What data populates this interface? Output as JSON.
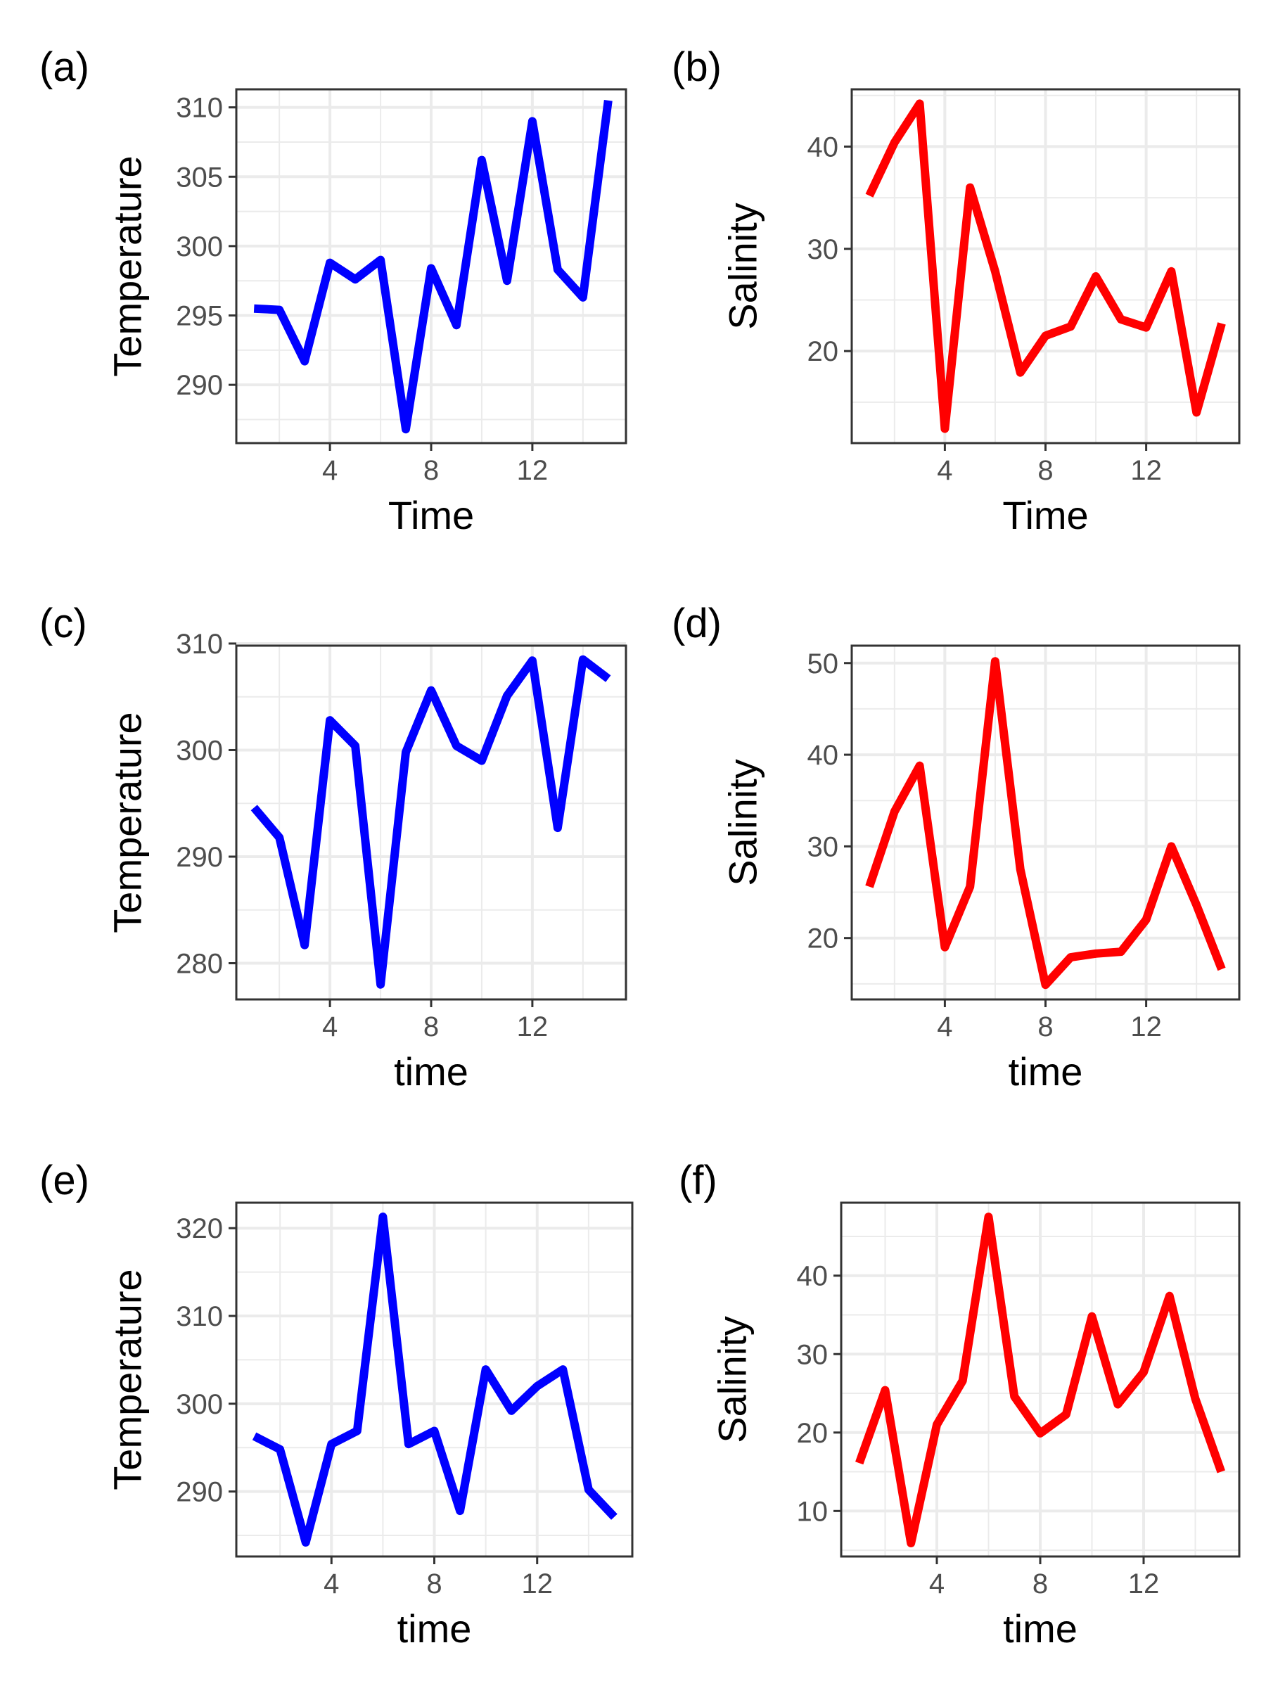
{
  "chart_data": [
    {
      "type": "line",
      "panel_tag": "(a)",
      "xlabel": "Time",
      "ylabel": "Temperature",
      "color": "#0000ff",
      "x": [
        1,
        2,
        3,
        4,
        5,
        6,
        7,
        8,
        9,
        10,
        11,
        12,
        13,
        14,
        15
      ],
      "values": [
        295.5,
        295.4,
        291.7,
        298.8,
        297.6,
        299,
        286.8,
        298.4,
        294.3,
        306.2,
        297.5,
        309,
        298.3,
        296.3,
        310.5
      ],
      "xlim": [
        0.3,
        15.7
      ],
      "ylim": [
        285.8,
        311.3
      ],
      "xticks": [
        4,
        8,
        12
      ],
      "yticks": [
        290,
        295,
        300,
        305,
        310
      ],
      "grid": true
    },
    {
      "type": "line",
      "panel_tag": "(b)",
      "xlabel": "Time",
      "ylabel": "Salinity",
      "color": "#ff0000",
      "x": [
        1,
        2,
        3,
        4,
        5,
        6,
        7,
        8,
        9,
        10,
        11,
        12,
        13,
        14,
        15
      ],
      "values": [
        35.2,
        40.4,
        44.2,
        12.4,
        36,
        27.8,
        17.9,
        21.5,
        22.4,
        27.3,
        23.1,
        22.3,
        27.8,
        14,
        22.7
      ],
      "xlim": [
        0.3,
        15.7
      ],
      "ylim": [
        11,
        45.6
      ],
      "xticks": [
        4,
        8,
        12
      ],
      "yticks": [
        20,
        30,
        40
      ],
      "grid": true
    },
    {
      "type": "line",
      "panel_tag": "(c)",
      "xlabel": "time",
      "ylabel": "Temperature",
      "color": "#0000ff",
      "x": [
        1,
        2,
        3,
        4,
        5,
        6,
        7,
        8,
        9,
        10,
        11,
        12,
        13,
        14,
        15
      ],
      "values": [
        294.6,
        291.8,
        281.7,
        302.8,
        300.4,
        278,
        299.8,
        305.6,
        300.4,
        299,
        305.1,
        308.4,
        292.7,
        308.5,
        306.7
      ],
      "xlim": [
        0.3,
        15.7
      ],
      "ylim": [
        276.6,
        309.8
      ],
      "xticks": [
        4,
        8,
        12
      ],
      "yticks": [
        280,
        290,
        300,
        310
      ],
      "grid": true
    },
    {
      "type": "line",
      "panel_tag": "(d)",
      "xlabel": "time",
      "ylabel": "Salinity",
      "color": "#ff0000",
      "x": [
        1,
        2,
        3,
        4,
        5,
        6,
        7,
        8,
        9,
        10,
        11,
        12,
        13,
        14,
        15
      ],
      "values": [
        25.6,
        33.8,
        38.8,
        19,
        25.6,
        50.2,
        27.5,
        14.9,
        17.9,
        18.3,
        18.5,
        22,
        30,
        23.6,
        16.6
      ],
      "xlim": [
        0.3,
        15.7
      ],
      "ylim": [
        13.3,
        51.9
      ],
      "xticks": [
        4,
        8,
        12
      ],
      "yticks": [
        20,
        30,
        40,
        50
      ],
      "grid": true
    },
    {
      "type": "line",
      "panel_tag": "(e)",
      "xlabel": "time",
      "ylabel": "Temperature",
      "color": "#0000ff",
      "x": [
        1,
        2,
        3,
        4,
        5,
        6,
        7,
        8,
        9,
        10,
        11,
        12,
        13,
        14,
        15
      ],
      "values": [
        296.3,
        294.8,
        284.2,
        295.4,
        296.9,
        321.3,
        295.4,
        296.9,
        287.8,
        303.9,
        299.2,
        302,
        303.9,
        290.2,
        287.1
      ],
      "xlim": [
        0.3,
        15.7
      ],
      "ylim": [
        282.6,
        322.9
      ],
      "xticks": [
        4,
        8,
        12
      ],
      "yticks": [
        290,
        300,
        310,
        320
      ],
      "grid": true
    },
    {
      "type": "line",
      "panel_tag": "(f)",
      "xlabel": "time",
      "ylabel": "Salinity",
      "color": "#ff0000",
      "x": [
        1,
        2,
        3,
        4,
        5,
        6,
        7,
        8,
        9,
        10,
        11,
        12,
        13,
        14,
        15
      ],
      "values": [
        16.1,
        25.4,
        5.9,
        21,
        26.6,
        47.5,
        24.6,
        19.9,
        22.3,
        34.8,
        23.6,
        27.7,
        37.4,
        24.3,
        15
      ],
      "xlim": [
        0.3,
        15.7
      ],
      "ylim": [
        4.2,
        49.3
      ],
      "xticks": [
        4,
        8,
        12
      ],
      "yticks": [
        10,
        20,
        30,
        40
      ],
      "grid": true
    }
  ]
}
